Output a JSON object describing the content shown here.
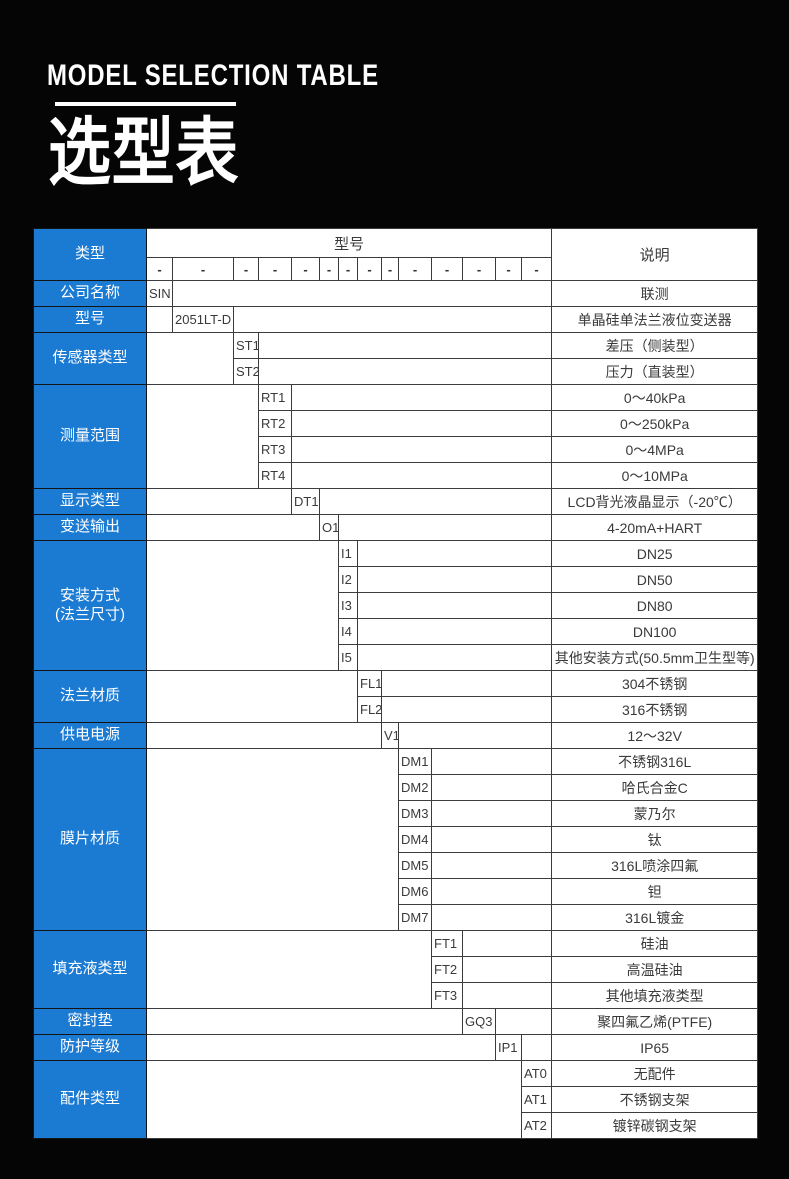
{
  "header": {
    "title_en": "MODEL SELECTION TABLE",
    "title_zh": "选型表"
  },
  "colors": {
    "accent_blue": "#1b7ad2",
    "page_bg": "#050505",
    "table_text": "#3a3a3a"
  },
  "table": {
    "corner_label": "类型",
    "model_header": "型号",
    "desc_header": "说明",
    "dash": "-",
    "model_column_count": 14,
    "groups": [
      {
        "label_lines": [
          "公司名称"
        ],
        "col": 1,
        "rows": [
          {
            "code": "SIN",
            "desc": "联测"
          }
        ]
      },
      {
        "label_lines": [
          "型号"
        ],
        "col": 2,
        "rows": [
          {
            "code": "2051LT-D",
            "desc": "单晶硅单法兰液位变送器"
          }
        ]
      },
      {
        "label_lines": [
          "传感器类型"
        ],
        "col": 3,
        "rows": [
          {
            "code": "ST1",
            "desc": "差压（侧装型）"
          },
          {
            "code": "ST2",
            "desc": "压力（直装型）"
          }
        ]
      },
      {
        "label_lines": [
          "测量范围"
        ],
        "col": 4,
        "rows": [
          {
            "code": "RT1",
            "desc": "0～40kPa"
          },
          {
            "code": "RT2",
            "desc": "0～250kPa"
          },
          {
            "code": "RT3",
            "desc": "0～4MPa"
          },
          {
            "code": "RT4",
            "desc": "0～10MPa"
          }
        ]
      },
      {
        "label_lines": [
          "显示类型"
        ],
        "col": 5,
        "rows": [
          {
            "code": "DT1",
            "desc": "LCD背光液晶显示（-20℃）"
          }
        ]
      },
      {
        "label_lines": [
          "变送输出"
        ],
        "col": 6,
        "rows": [
          {
            "code": "O1",
            "desc": "4-20mA+HART"
          }
        ]
      },
      {
        "label_lines": [
          "安装方式",
          "(法兰尺寸)"
        ],
        "col": 7,
        "rows": [
          {
            "code": "I1",
            "desc": "DN25"
          },
          {
            "code": "I2",
            "desc": "DN50"
          },
          {
            "code": "I3",
            "desc": "DN80"
          },
          {
            "code": "I4",
            "desc": "DN100"
          },
          {
            "code": "I5",
            "desc": "其他安装方式(50.5mm卫生型等)"
          }
        ]
      },
      {
        "label_lines": [
          "法兰材质"
        ],
        "col": 8,
        "rows": [
          {
            "code": "FL1",
            "desc": "304不锈钢"
          },
          {
            "code": "FL2",
            "desc": "316不锈钢"
          }
        ]
      },
      {
        "label_lines": [
          "供电电源"
        ],
        "col": 9,
        "rows": [
          {
            "code": "V1",
            "desc": "12～32V"
          }
        ]
      },
      {
        "label_lines": [
          "膜片材质"
        ],
        "col": 10,
        "rows": [
          {
            "code": "DM1",
            "desc": "不锈钢316L"
          },
          {
            "code": "DM2",
            "desc": "哈氏合金C"
          },
          {
            "code": "DM3",
            "desc": "蒙乃尔"
          },
          {
            "code": "DM4",
            "desc": "钛"
          },
          {
            "code": "DM5",
            "desc": "316L喷涂四氟"
          },
          {
            "code": "DM6",
            "desc": "钽"
          },
          {
            "code": "DM7",
            "desc": "316L镀金"
          }
        ]
      },
      {
        "label_lines": [
          "填充液类型"
        ],
        "col": 11,
        "rows": [
          {
            "code": "FT1",
            "desc": "硅油"
          },
          {
            "code": "FT2",
            "desc": "高温硅油"
          },
          {
            "code": "FT3",
            "desc": "其他填充液类型"
          }
        ]
      },
      {
        "label_lines": [
          "密封垫"
        ],
        "col": 12,
        "rows": [
          {
            "code": "GQ3",
            "desc": "聚四氟乙烯(PTFE)"
          }
        ]
      },
      {
        "label_lines": [
          "防护等级"
        ],
        "col": 13,
        "rows": [
          {
            "code": "IP1",
            "desc": "IP65"
          }
        ]
      },
      {
        "label_lines": [
          "配件类型"
        ],
        "col": 14,
        "rows": [
          {
            "code": "AT0",
            "desc": "无配件"
          },
          {
            "code": "AT1",
            "desc": "不锈钢支架"
          },
          {
            "code": "AT2",
            "desc": "镀锌碳钢支架"
          }
        ]
      }
    ]
  }
}
